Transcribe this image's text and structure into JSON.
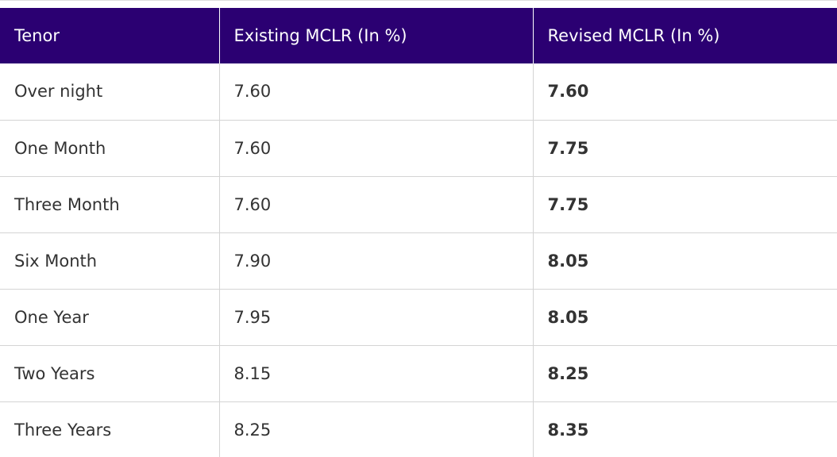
{
  "table": {
    "header": [
      "Tenor",
      "Existing MCLR (In %)",
      "Revised MCLR (In %)"
    ],
    "rows": [
      [
        "Over night",
        "7.60",
        "7.60"
      ],
      [
        "One Month",
        "7.60",
        "7.75"
      ],
      [
        "Three Month",
        "7.60",
        "7.75"
      ],
      [
        "Six Month",
        "7.90",
        "8.05"
      ],
      [
        "One Year",
        "7.95",
        "8.05"
      ],
      [
        "Two Years",
        "8.15",
        "8.25"
      ],
      [
        "Three Years",
        "8.25",
        "8.35"
      ]
    ]
  }
}
